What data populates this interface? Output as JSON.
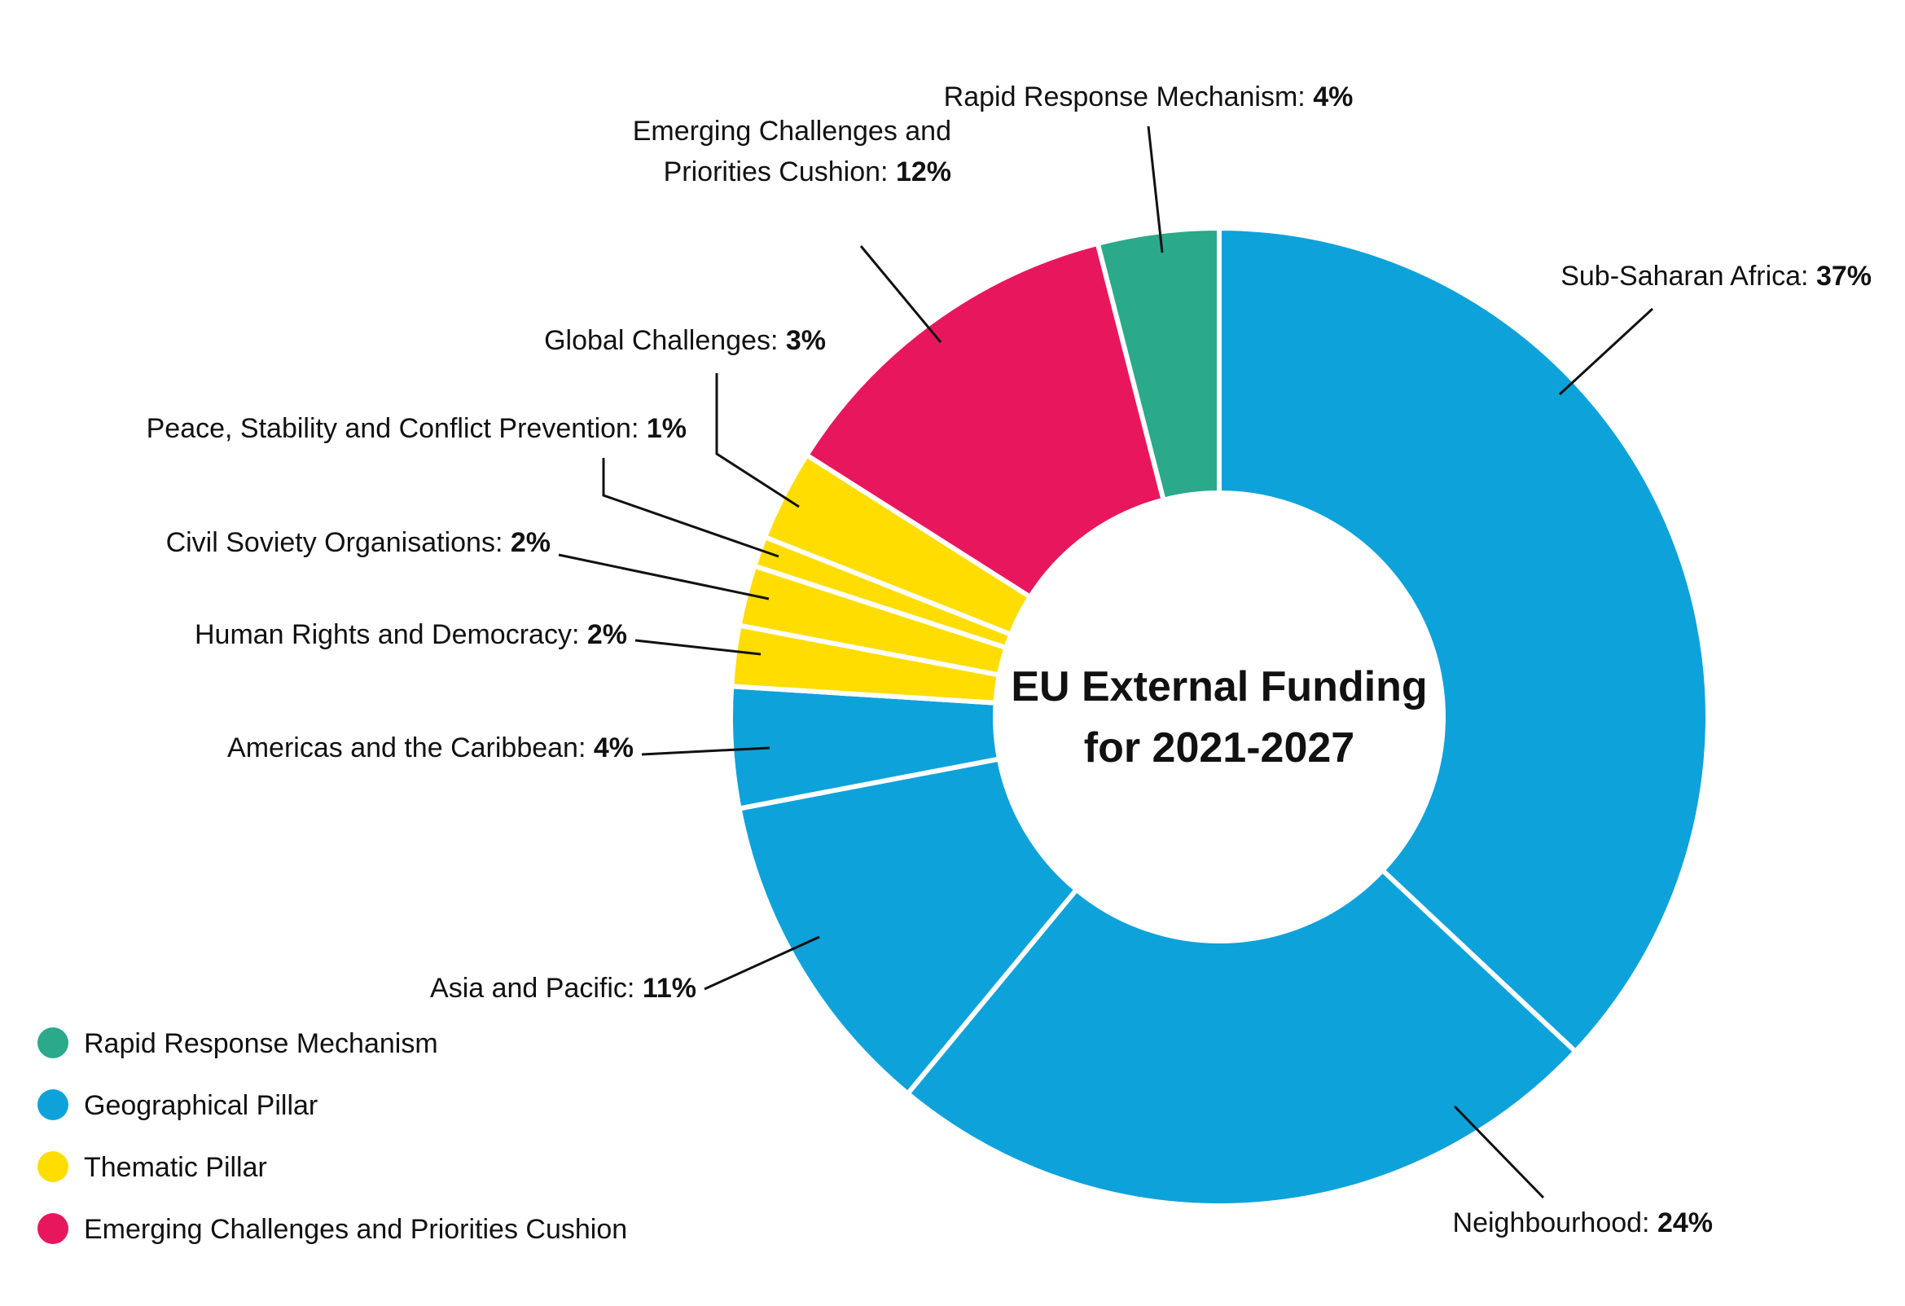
{
  "chart_data": {
    "type": "donut",
    "title": [
      "EU External Funding",
      "for 2021-2027"
    ],
    "colors": {
      "rapid": "#2aa98b",
      "geo": "#0ea2db",
      "thematic": "#ffdd00",
      "cushion": "#e8175d"
    },
    "slices": [
      {
        "key": "ssa",
        "name": "Sub-Saharan Africa:",
        "pct_label": "37%",
        "value": 37,
        "group": "geo"
      },
      {
        "key": "neigh",
        "name": "Neighbourhood:",
        "pct_label": "24%",
        "value": 24,
        "group": "geo"
      },
      {
        "key": "asia",
        "name": "Asia and Pacific:",
        "pct_label": "11%",
        "value": 11,
        "group": "geo"
      },
      {
        "key": "americas",
        "name": "Americas and the Caribbean:",
        "pct_label": "4%",
        "value": 4,
        "group": "geo"
      },
      {
        "key": "hrd",
        "name": "Human Rights and Democracy:",
        "pct_label": "2%",
        "value": 2,
        "group": "thematic"
      },
      {
        "key": "cso",
        "name": "Civil Soviety Organisations:",
        "pct_label": "2%",
        "value": 2,
        "group": "thematic"
      },
      {
        "key": "peace",
        "name": "Peace, Stability and Conflict Prevention:",
        "pct_label": "1%",
        "value": 1,
        "group": "thematic"
      },
      {
        "key": "global",
        "name": "Global Challenges:",
        "pct_label": "3%",
        "value": 3,
        "group": "thematic"
      },
      {
        "key": "cushion",
        "name": [
          "Emerging Challenges and",
          "Priorities Cushion:"
        ],
        "pct_label": "12%",
        "value": 12,
        "group": "cushion"
      },
      {
        "key": "rapid",
        "name": "Rapid Response Mechanism:",
        "pct_label": "4%",
        "value": 4,
        "group": "rapid"
      }
    ],
    "legend": [
      {
        "label": "Rapid Response Mechanism",
        "group": "rapid"
      },
      {
        "label": "Geographical Pillar",
        "group": "geo"
      },
      {
        "label": "Thematic Pillar",
        "group": "thematic"
      },
      {
        "label": "Emerging Challenges and Priorities Cushion",
        "group": "cushion"
      }
    ]
  }
}
